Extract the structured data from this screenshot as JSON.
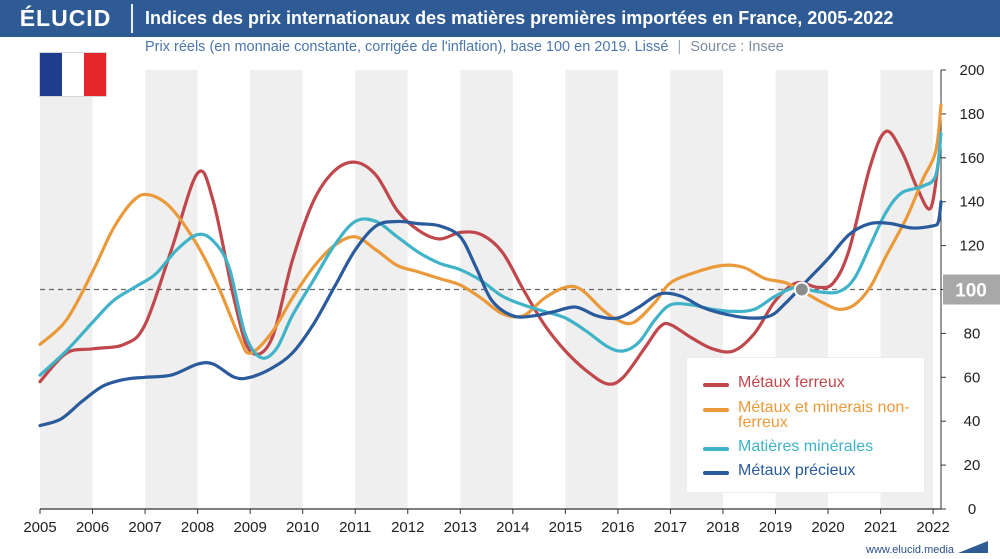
{
  "header": {
    "logo": "ÉLUCID",
    "title": "Indices des prix internationaux des matières premières importées en France, 2005-2022",
    "subtitle": "Prix réels (en monnaie constante, corrigée de l'inflation), base 100 en 2019. Lissé",
    "separator": "|",
    "source": "Source : Insee"
  },
  "footer": {
    "url": "www.elucid.media"
  },
  "colors": {
    "header_bg": "#2f5b95",
    "flag_blue": "#1f3d8c",
    "flag_white": "#ffffff",
    "flag_red": "#e5262a",
    "band_alt": "#efefef",
    "reference_badge": "#a8a8a8"
  },
  "chart_data": {
    "type": "line",
    "x_ticks": [
      "2005",
      "2006",
      "2007",
      "2008",
      "2009",
      "2010",
      "2011",
      "2012",
      "2013",
      "2014",
      "2015",
      "2016",
      "2017",
      "2018",
      "2019",
      "2020",
      "2021",
      "2022"
    ],
    "y_ticks": [
      "0",
      "20",
      "40",
      "60",
      "80",
      "100",
      "120",
      "140",
      "160",
      "180",
      "200"
    ],
    "ylim": [
      0,
      200
    ],
    "xlim": [
      2005,
      2022.15
    ],
    "y_axis_side": "right",
    "grid": false,
    "alternating_year_bands": true,
    "reference_line": {
      "value": 100,
      "label": "100",
      "style": "dashed"
    },
    "reference_point": {
      "x": 2019.5,
      "y": 100
    },
    "legend_position": "bottom-right",
    "series": [
      {
        "name": "Métaux ferreux",
        "color": "#c0474b",
        "points": [
          [
            2005,
            58
          ],
          [
            2005.5,
            71
          ],
          [
            2006,
            73
          ],
          [
            2006.6,
            75
          ],
          [
            2007,
            84
          ],
          [
            2007.5,
            118
          ],
          [
            2008,
            153
          ],
          [
            2008.3,
            140
          ],
          [
            2008.7,
            95
          ],
          [
            2009,
            72
          ],
          [
            2009.4,
            77
          ],
          [
            2009.8,
            113
          ],
          [
            2010.2,
            140
          ],
          [
            2010.6,
            154
          ],
          [
            2011,
            158
          ],
          [
            2011.4,
            152
          ],
          [
            2011.8,
            136
          ],
          [
            2012.2,
            127
          ],
          [
            2012.6,
            123
          ],
          [
            2013,
            126
          ],
          [
            2013.4,
            125
          ],
          [
            2013.8,
            117
          ],
          [
            2014.2,
            100
          ],
          [
            2014.6,
            84
          ],
          [
            2015,
            72
          ],
          [
            2015.4,
            63
          ],
          [
            2015.8,
            57
          ],
          [
            2016.1,
            60
          ],
          [
            2016.5,
            73
          ],
          [
            2016.8,
            83
          ],
          [
            2017,
            84
          ],
          [
            2017.4,
            78
          ],
          [
            2017.8,
            73
          ],
          [
            2018.2,
            72
          ],
          [
            2018.6,
            80
          ],
          [
            2019,
            95
          ],
          [
            2019.4,
            103
          ],
          [
            2019.8,
            101
          ],
          [
            2020.1,
            103
          ],
          [
            2020.4,
            118
          ],
          [
            2020.8,
            156
          ],
          [
            2021.1,
            172
          ],
          [
            2021.4,
            163
          ],
          [
            2021.7,
            146
          ],
          [
            2021.95,
            137
          ],
          [
            2022.1,
            158
          ]
        ]
      },
      {
        "name": "Métaux et minerais non-ferreux",
        "color": "#ea9a3a",
        "points": [
          [
            2005,
            75
          ],
          [
            2005.5,
            86
          ],
          [
            2006,
            108
          ],
          [
            2006.4,
            128
          ],
          [
            2006.8,
            141
          ],
          [
            2007.1,
            143
          ],
          [
            2007.5,
            137
          ],
          [
            2008,
            120
          ],
          [
            2008.4,
            101
          ],
          [
            2008.8,
            78
          ],
          [
            2009,
            71
          ],
          [
            2009.4,
            80
          ],
          [
            2009.8,
            96
          ],
          [
            2010.2,
            110
          ],
          [
            2010.6,
            120
          ],
          [
            2011,
            124
          ],
          [
            2011.4,
            118
          ],
          [
            2011.8,
            111
          ],
          [
            2012.2,
            108
          ],
          [
            2012.6,
            105
          ],
          [
            2013,
            102
          ],
          [
            2013.4,
            96
          ],
          [
            2013.8,
            89
          ],
          [
            2014.2,
            88
          ],
          [
            2014.6,
            96
          ],
          [
            2015,
            101
          ],
          [
            2015.3,
            100
          ],
          [
            2015.7,
            91
          ],
          [
            2016,
            86
          ],
          [
            2016.3,
            85
          ],
          [
            2016.7,
            94
          ],
          [
            2017,
            103
          ],
          [
            2017.5,
            108
          ],
          [
            2018,
            111
          ],
          [
            2018.4,
            110
          ],
          [
            2018.8,
            105
          ],
          [
            2019.2,
            103
          ],
          [
            2019.6,
            98
          ],
          [
            2019.9,
            94
          ],
          [
            2020.2,
            91
          ],
          [
            2020.5,
            93
          ],
          [
            2020.8,
            101
          ],
          [
            2021.1,
            115
          ],
          [
            2021.5,
            133
          ],
          [
            2021.8,
            150
          ],
          [
            2022.05,
            163
          ],
          [
            2022.15,
            184
          ]
        ]
      },
      {
        "name": "Matières minérales",
        "color": "#40b3c8",
        "points": [
          [
            2005,
            61
          ],
          [
            2005.5,
            72
          ],
          [
            2006,
            85
          ],
          [
            2006.4,
            95
          ],
          [
            2006.8,
            101
          ],
          [
            2007.2,
            107
          ],
          [
            2007.6,
            118
          ],
          [
            2008,
            125
          ],
          [
            2008.3,
            122
          ],
          [
            2008.6,
            110
          ],
          [
            2008.9,
            80
          ],
          [
            2009.2,
            69
          ],
          [
            2009.5,
            73
          ],
          [
            2009.8,
            88
          ],
          [
            2010.2,
            104
          ],
          [
            2010.6,
            120
          ],
          [
            2011,
            131
          ],
          [
            2011.4,
            131
          ],
          [
            2011.8,
            124
          ],
          [
            2012.2,
            117
          ],
          [
            2012.6,
            112
          ],
          [
            2013,
            109
          ],
          [
            2013.4,
            104
          ],
          [
            2013.8,
            97
          ],
          [
            2014.2,
            93
          ],
          [
            2014.6,
            90
          ],
          [
            2015,
            87
          ],
          [
            2015.4,
            81
          ],
          [
            2015.8,
            74
          ],
          [
            2016.1,
            72
          ],
          [
            2016.4,
            76
          ],
          [
            2016.7,
            86
          ],
          [
            2017,
            93
          ],
          [
            2017.4,
            93
          ],
          [
            2017.8,
            91
          ],
          [
            2018.2,
            90
          ],
          [
            2018.6,
            91
          ],
          [
            2019,
            97
          ],
          [
            2019.4,
            101
          ],
          [
            2019.8,
            99
          ],
          [
            2020.2,
            99
          ],
          [
            2020.5,
            105
          ],
          [
            2020.8,
            120
          ],
          [
            2021.1,
            135
          ],
          [
            2021.4,
            144
          ],
          [
            2021.8,
            147
          ],
          [
            2022.05,
            152
          ],
          [
            2022.15,
            171
          ]
        ]
      },
      {
        "name": "Métaux précieux",
        "color": "#2a5b9c",
        "points": [
          [
            2005,
            38
          ],
          [
            2005.4,
            41
          ],
          [
            2005.8,
            49
          ],
          [
            2006.2,
            56
          ],
          [
            2006.6,
            59
          ],
          [
            2007,
            60
          ],
          [
            2007.5,
            61
          ],
          [
            2008,
            66
          ],
          [
            2008.3,
            66
          ],
          [
            2008.7,
            60
          ],
          [
            2009,
            60
          ],
          [
            2009.4,
            64
          ],
          [
            2009.8,
            71
          ],
          [
            2010.2,
            84
          ],
          [
            2010.6,
            101
          ],
          [
            2011,
            118
          ],
          [
            2011.4,
            129
          ],
          [
            2011.8,
            131
          ],
          [
            2012.2,
            130
          ],
          [
            2012.6,
            129
          ],
          [
            2013,
            124
          ],
          [
            2013.3,
            110
          ],
          [
            2013.6,
            95
          ],
          [
            2014,
            88
          ],
          [
            2014.4,
            88
          ],
          [
            2014.8,
            90
          ],
          [
            2015.2,
            92
          ],
          [
            2015.6,
            88
          ],
          [
            2016,
            87
          ],
          [
            2016.4,
            92
          ],
          [
            2016.8,
            98
          ],
          [
            2017.2,
            97
          ],
          [
            2017.6,
            92
          ],
          [
            2018,
            89
          ],
          [
            2018.5,
            87
          ],
          [
            2018.9,
            88
          ],
          [
            2019.2,
            94
          ],
          [
            2019.6,
            104
          ],
          [
            2020,
            114
          ],
          [
            2020.4,
            125
          ],
          [
            2020.8,
            130
          ],
          [
            2021.2,
            130
          ],
          [
            2021.6,
            128
          ],
          [
            2022,
            129
          ],
          [
            2022.1,
            131
          ],
          [
            2022.15,
            140
          ]
        ]
      }
    ]
  }
}
